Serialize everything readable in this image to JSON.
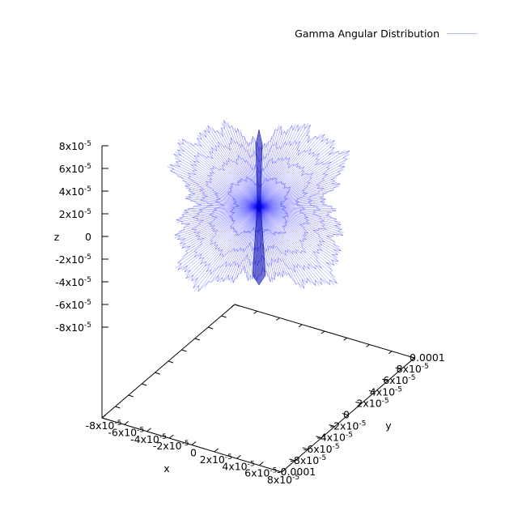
{
  "chart_data": {
    "type": "scatter",
    "subtype": "3d-surface-mesh",
    "title": "",
    "legend": {
      "placement": "top-right",
      "entries": [
        {
          "label": "Gamma Angular Distribution",
          "color": "#0000ff"
        }
      ]
    },
    "series": [
      {
        "name": "Gamma Angular Distribution",
        "color": "#0000ff",
        "style": "lines-from-origin"
      }
    ],
    "axes": {
      "x": {
        "label": "x",
        "range": [
          -8e-05,
          8e-05
        ],
        "ticks": [
          {
            "base": "-8x10",
            "exp": "-5"
          },
          {
            "base": "-6x10",
            "exp": "-5"
          },
          {
            "base": "-4x10",
            "exp": "-5"
          },
          {
            "base": "-2x10",
            "exp": "-5"
          },
          {
            "base": "0",
            "exp": ""
          },
          {
            "base": "2x10",
            "exp": "-5"
          },
          {
            "base": "4x10",
            "exp": "-5"
          },
          {
            "base": "6x10",
            "exp": "-5"
          },
          {
            "base": "8x10",
            "exp": "-5"
          }
        ]
      },
      "y": {
        "label": "y",
        "range": [
          -0.0001,
          0.0001
        ],
        "ticks": [
          {
            "base": "-0.0001",
            "exp": ""
          },
          {
            "base": "-8x10",
            "exp": "-5"
          },
          {
            "base": "-6x10",
            "exp": "-5"
          },
          {
            "base": "-4x10",
            "exp": "-5"
          },
          {
            "base": "-2x10",
            "exp": "-5"
          },
          {
            "base": "0",
            "exp": ""
          },
          {
            "base": "2x10",
            "exp": "-5"
          },
          {
            "base": "4x10",
            "exp": "-5"
          },
          {
            "base": "6x10",
            "exp": "-5"
          },
          {
            "base": "8x10",
            "exp": "-5"
          },
          {
            "base": "0.0001",
            "exp": ""
          }
        ]
      },
      "z": {
        "label": "z",
        "range": [
          -8e-05,
          8e-05
        ],
        "ticks": [
          {
            "base": "8x10",
            "exp": "-5"
          },
          {
            "base": "6x10",
            "exp": "-5"
          },
          {
            "base": "4x10",
            "exp": "-5"
          },
          {
            "base": "2x10",
            "exp": "-5"
          },
          {
            "base": "0",
            "exp": ""
          },
          {
            "base": "-2x10",
            "exp": "-5"
          },
          {
            "base": "-4x10",
            "exp": "-5"
          },
          {
            "base": "-6x10",
            "exp": "-5"
          },
          {
            "base": "-8x10",
            "exp": "-5"
          }
        ]
      }
    },
    "grid": false
  }
}
